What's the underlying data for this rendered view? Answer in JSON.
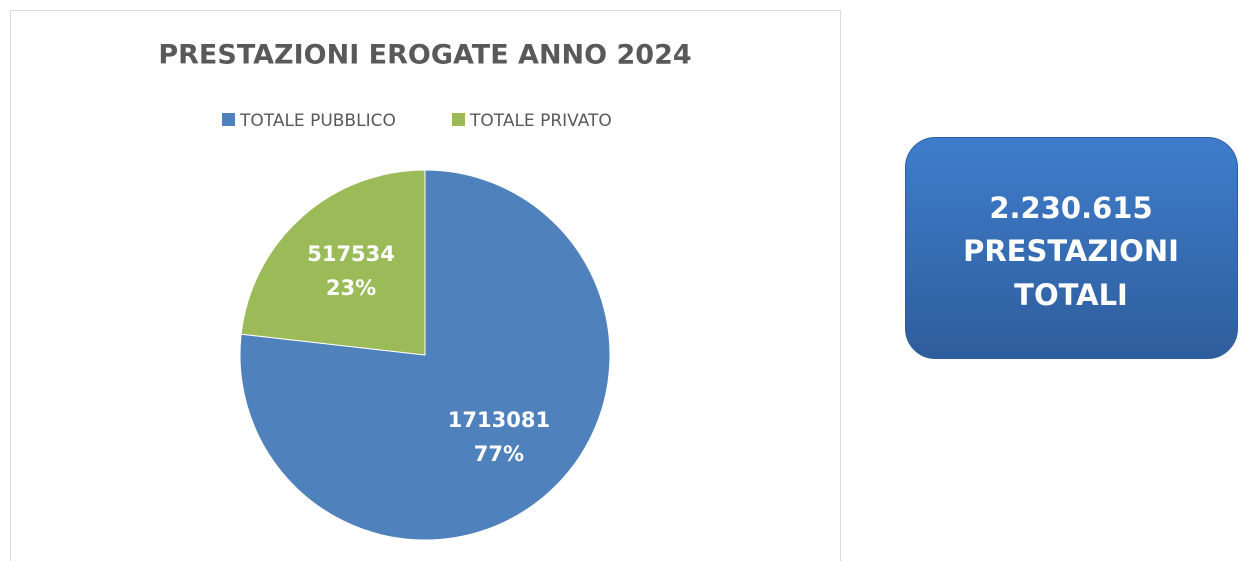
{
  "chart_data": {
    "type": "pie",
    "title": "PRESTAZIONI EROGATE ANNO 2024",
    "categories": [
      "TOTALE PUBBLICO",
      "TOTALE PRIVATO"
    ],
    "values": [
      1713081,
      517534
    ],
    "percents": [
      77,
      23
    ],
    "percent_labels": [
      "77%",
      "23%"
    ],
    "colors": [
      "#4f81bd",
      "#9bbb59"
    ],
    "legend": "top"
  },
  "callout": {
    "value": 2230615,
    "label": "2.230.615",
    "text": [
      "PRESTAZIONI",
      "TOTALI"
    ]
  }
}
